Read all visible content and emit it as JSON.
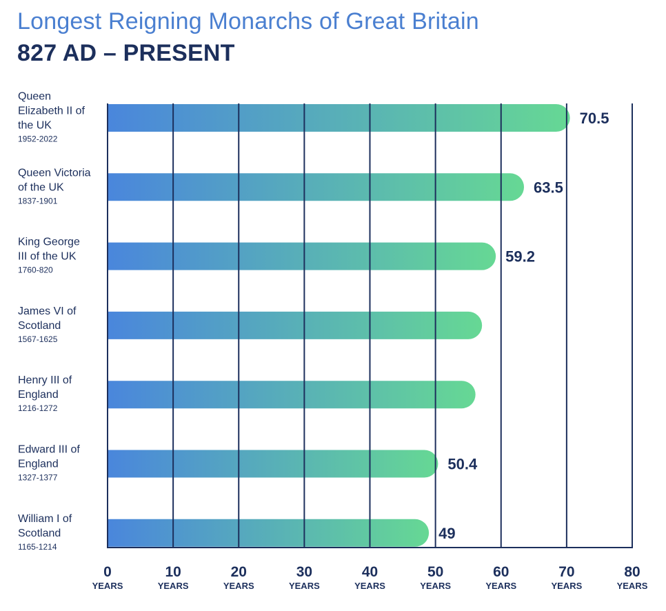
{
  "chart_data": {
    "type": "bar",
    "orientation": "horizontal",
    "title": "Longest Reigning Monarchs of Great Britain",
    "subtitle": "827 AD – PRESENT",
    "xlabel": "",
    "ylabel": "",
    "xlim": [
      0,
      80
    ],
    "x_ticks": [
      "0",
      "10",
      "20",
      "30",
      "40",
      "50",
      "60",
      "70",
      "80"
    ],
    "x_tick_unit": "YEARS",
    "categories": [
      {
        "name_lines": [
          "Queen",
          "Elizabeth II of",
          "the UK"
        ],
        "years": "1952-2022"
      },
      {
        "name_lines": [
          "Queen Victoria",
          "of the UK"
        ],
        "years": "1837-1901"
      },
      {
        "name_lines": [
          "King George",
          "III of the UK"
        ],
        "years": "1760-820"
      },
      {
        "name_lines": [
          "James VI of",
          "Scotland"
        ],
        "years": "1567-1625"
      },
      {
        "name_lines": [
          "Henry III of",
          "England"
        ],
        "years": "1216-1272"
      },
      {
        "name_lines": [
          "Edward III of",
          "England"
        ],
        "years": "1327-1377"
      },
      {
        "name_lines": [
          "William I of",
          "Scotland"
        ],
        "years": "1165-1214"
      }
    ],
    "values": [
      70.5,
      63.5,
      59.2,
      57.1,
      56.1,
      50.4,
      49
    ],
    "data_labels": [
      "70.5",
      "63.5",
      "59.2",
      "",
      "",
      "50.4",
      "49"
    ],
    "gradient_colors": [
      "#4a86dc",
      "#66d894"
    ],
    "gridline_color": "#1c2f5c",
    "text_color": "#1c2f5c",
    "title_color": "#4a7fd0"
  }
}
